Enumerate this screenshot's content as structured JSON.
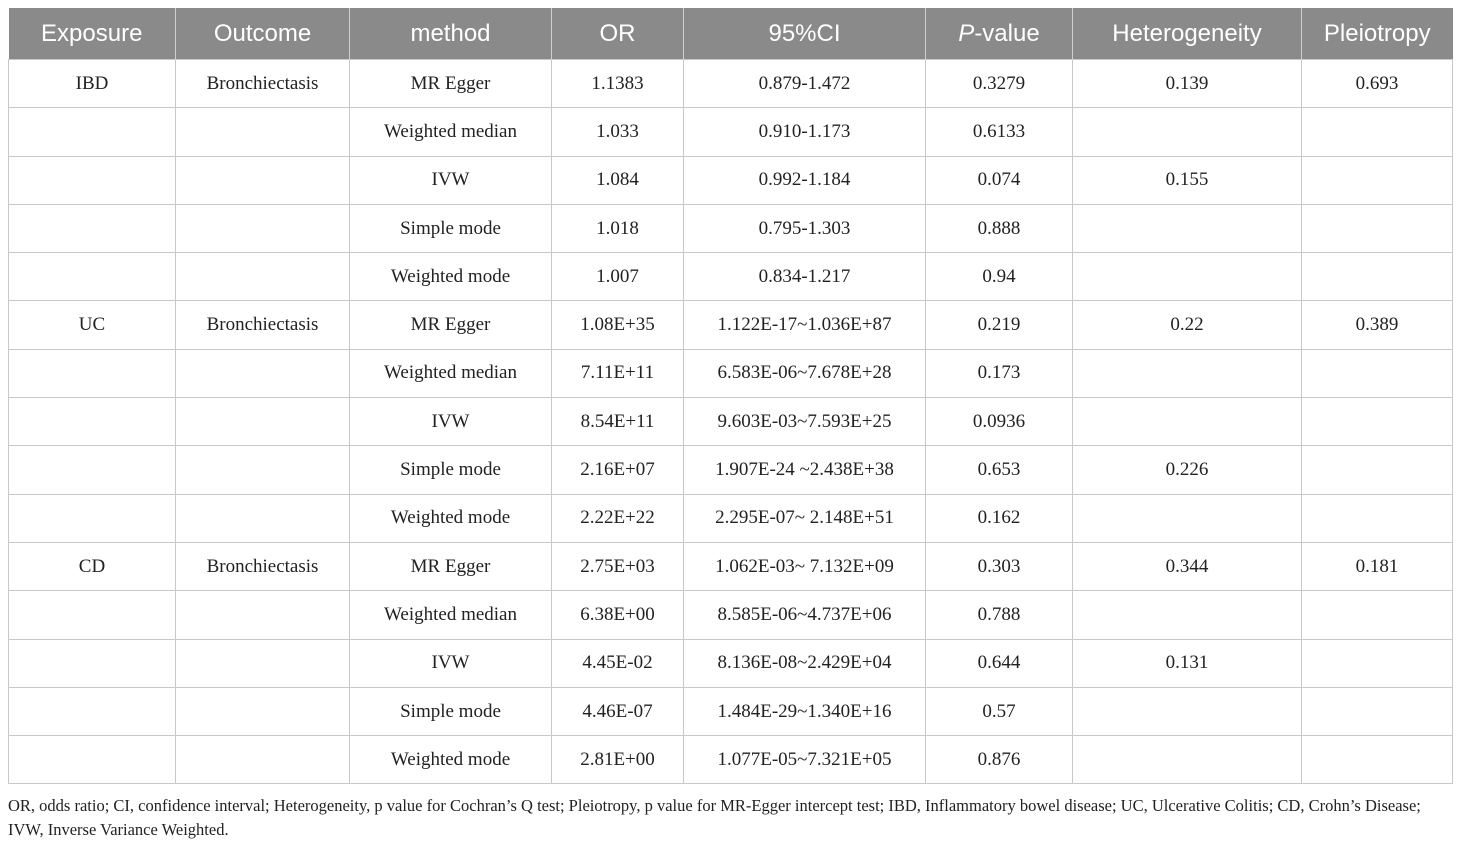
{
  "headers": {
    "exposure": "Exposure",
    "outcome": "Outcome",
    "method": "method",
    "or": "OR",
    "ci": "95%CI",
    "p_italic": "P",
    "p_rest": "-value",
    "heterogeneity": "Heterogeneity",
    "pleiotropy": "Pleiotropy"
  },
  "rows": [
    {
      "exposure": "IBD",
      "outcome": "Bronchiectasis",
      "method": "MR Egger",
      "or": "1.1383",
      "ci": "0.879-1.472",
      "p": "0.3279",
      "het": "0.139",
      "pleio": "0.693"
    },
    {
      "exposure": "",
      "outcome": "",
      "method": "Weighted median",
      "or": "1.033",
      "ci": "0.910-1.173",
      "p": "0.6133",
      "het": "",
      "pleio": ""
    },
    {
      "exposure": "",
      "outcome": "",
      "method": "IVW",
      "or": "1.084",
      "ci": "0.992-1.184",
      "p": "0.074",
      "het": "0.155",
      "pleio": ""
    },
    {
      "exposure": "",
      "outcome": "",
      "method": "Simple mode",
      "or": "1.018",
      "ci": "0.795-1.303",
      "p": "0.888",
      "het": "",
      "pleio": ""
    },
    {
      "exposure": "",
      "outcome": "",
      "method": "Weighted mode",
      "or": "1.007",
      "ci": "0.834-1.217",
      "p": "0.94",
      "het": "",
      "pleio": ""
    },
    {
      "exposure": "UC",
      "outcome": "Bronchiectasis",
      "method": "MR Egger",
      "or": "1.08E+35",
      "ci": "1.122E-17~1.036E+87",
      "p": "0.219",
      "het": "0.22",
      "pleio": "0.389"
    },
    {
      "exposure": "",
      "outcome": "",
      "method": "Weighted median",
      "or": "7.11E+11",
      "ci": "6.583E-06~7.678E+28",
      "p": "0.173",
      "het": "",
      "pleio": ""
    },
    {
      "exposure": "",
      "outcome": "",
      "method": "IVW",
      "or": "8.54E+11",
      "ci": "9.603E-03~7.593E+25",
      "p": "0.0936",
      "het": "",
      "pleio": ""
    },
    {
      "exposure": "",
      "outcome": "",
      "method": "Simple mode",
      "or": "2.16E+07",
      "ci": "1.907E-24 ~2.438E+38",
      "p": "0.653",
      "het": "0.226",
      "pleio": ""
    },
    {
      "exposure": "",
      "outcome": "",
      "method": "Weighted mode",
      "or": "2.22E+22",
      "ci": "2.295E-07~ 2.148E+51",
      "p": "0.162",
      "het": "",
      "pleio": ""
    },
    {
      "exposure": "CD",
      "outcome": "Bronchiectasis",
      "method": "MR Egger",
      "or": "2.75E+03",
      "ci": "1.062E-03~ 7.132E+09",
      "p": "0.303",
      "het": "0.344",
      "pleio": "0.181"
    },
    {
      "exposure": "",
      "outcome": "",
      "method": "Weighted median",
      "or": "6.38E+00",
      "ci": "8.585E-06~4.737E+06",
      "p": "0.788",
      "het": "",
      "pleio": ""
    },
    {
      "exposure": "",
      "outcome": "",
      "method": "IVW",
      "or": "4.45E-02",
      "ci": "8.136E-08~2.429E+04",
      "p": "0.644",
      "het": "0.131",
      "pleio": ""
    },
    {
      "exposure": "",
      "outcome": "",
      "method": "Simple mode",
      "or": "4.46E-07",
      "ci": "1.484E-29~1.340E+16",
      "p": "0.57",
      "het": "",
      "pleio": ""
    },
    {
      "exposure": "",
      "outcome": "",
      "method": "Weighted mode",
      "or": "2.81E+00",
      "ci": "1.077E-05~7.321E+05",
      "p": "0.876",
      "het": "",
      "pleio": ""
    }
  ],
  "footnote": "OR, odds ratio; CI, confidence interval; Heterogeneity, p value for Cochran’s Q test; Pleiotropy, p value for MR-Egger intercept test; IBD, Inflammatory bowel disease; UC, Ulcerative Colitis; CD, Crohn’s Disease; IVW, Inverse Variance Weighted."
}
